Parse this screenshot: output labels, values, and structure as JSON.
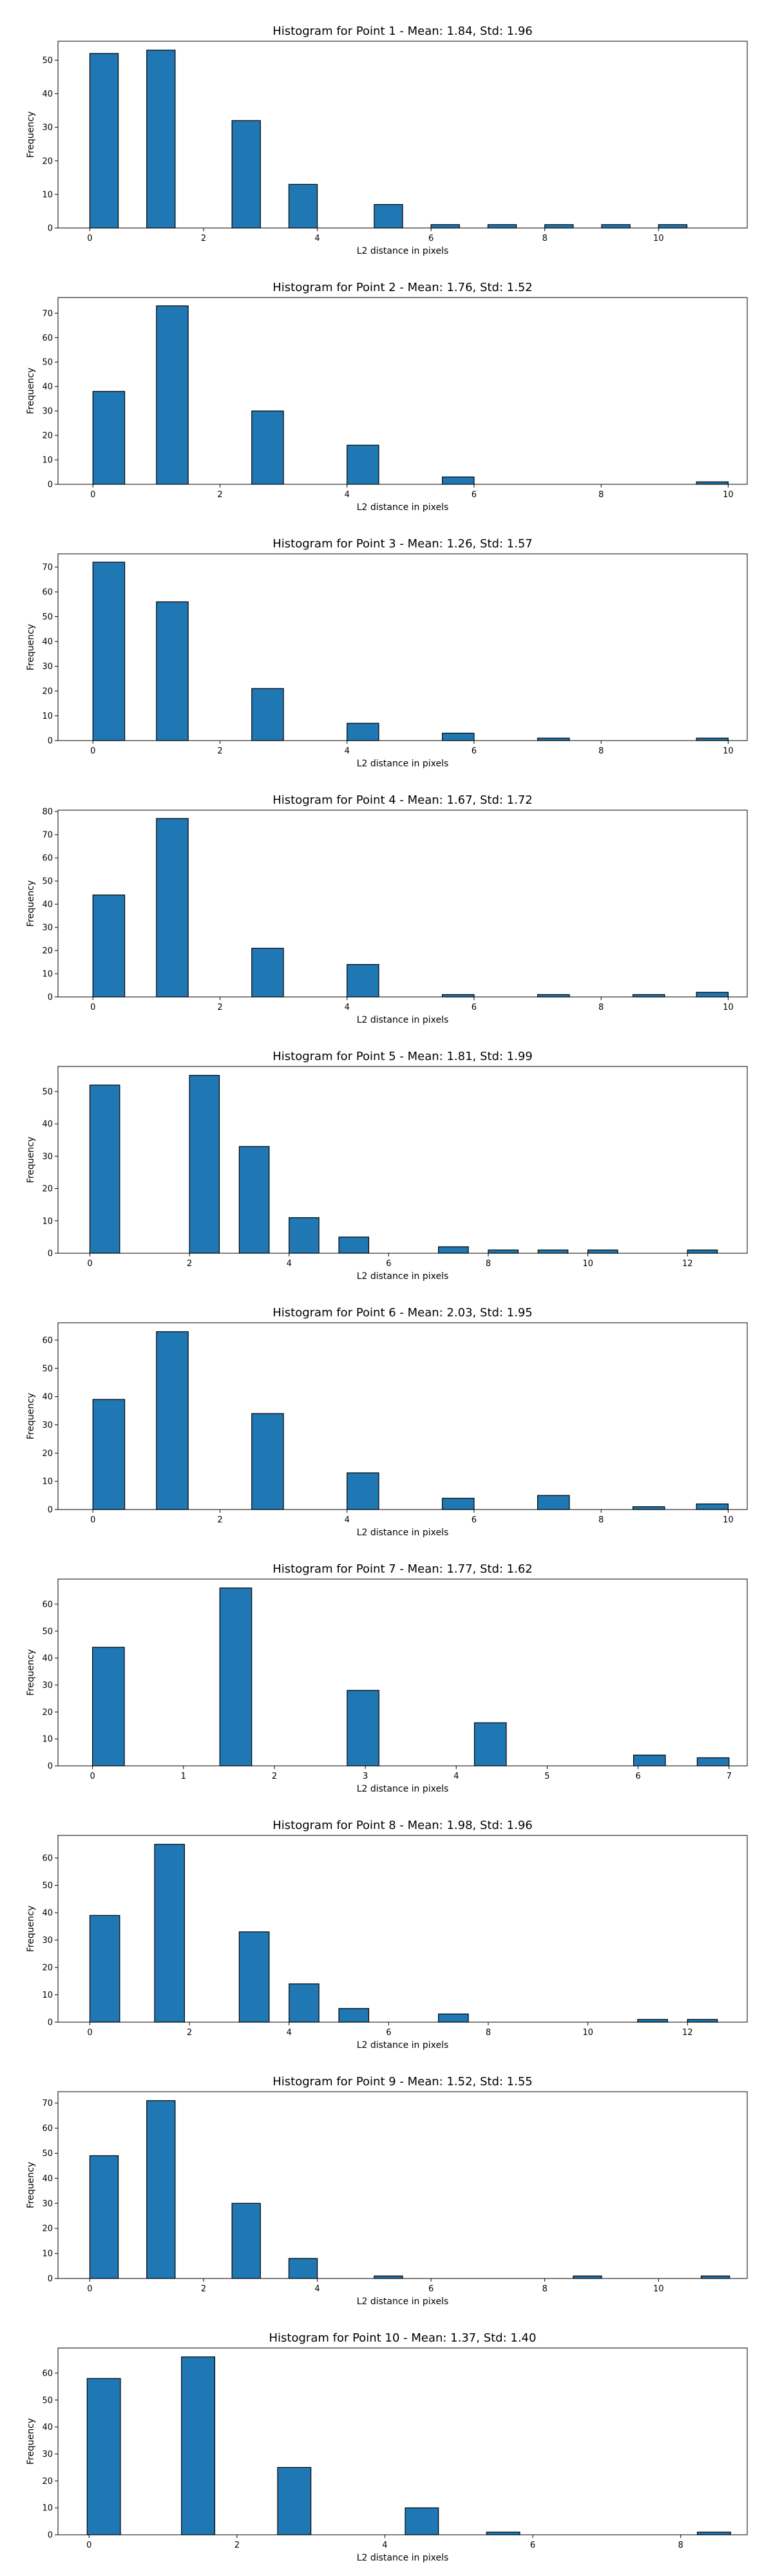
{
  "figure": {
    "background": "#ffffff",
    "bar_color": "#1f77b4",
    "bar_edge_color": "#000000"
  },
  "chart_data": [
    {
      "type": "bar",
      "title": "Histogram for Point 1 - Mean: 1.84, Std: 1.96",
      "xlabel": "L2 distance in pixels",
      "ylabel": "Frequency",
      "xlim": [
        -0.56,
        11.56
      ],
      "ylim": [
        0,
        55.65
      ],
      "xticks": [
        0,
        2,
        4,
        6,
        8,
        10
      ],
      "yticks": [
        0,
        10,
        20,
        30,
        40,
        50
      ],
      "bar_width": 0.5,
      "x": [
        0.25,
        1.25,
        2.75,
        3.75,
        5.25,
        6.25,
        7.25,
        8.25,
        9.25,
        10.25
      ],
      "values": [
        52,
        53,
        32,
        13,
        7,
        1,
        1,
        1,
        1,
        1
      ]
    },
    {
      "type": "bar",
      "title": "Histogram for Point 2 - Mean: 1.76, Std: 1.52",
      "xlabel": "L2 distance in pixels",
      "ylabel": "Frequency",
      "xlim": [
        -0.55,
        10.3
      ],
      "ylim": [
        0,
        76.4
      ],
      "xticks": [
        0,
        2,
        4,
        6,
        8,
        10
      ],
      "yticks": [
        0,
        10,
        20,
        30,
        40,
        50,
        60,
        70
      ],
      "bar_width": 0.5,
      "x": [
        0.25,
        1.25,
        2.75,
        4.25,
        5.75,
        9.75
      ],
      "values": [
        38,
        73,
        30,
        16,
        3,
        1
      ]
    },
    {
      "type": "bar",
      "title": "Histogram for Point 3 - Mean: 1.26, Std: 1.57",
      "xlabel": "L2 distance in pixels",
      "ylabel": "Frequency",
      "xlim": [
        -0.55,
        10.3
      ],
      "ylim": [
        0,
        75.35
      ],
      "xticks": [
        0,
        2,
        4,
        6,
        8,
        10
      ],
      "yticks": [
        0,
        10,
        20,
        30,
        40,
        50,
        60,
        70
      ],
      "bar_width": 0.5,
      "x": [
        0.25,
        1.25,
        2.75,
        4.25,
        5.75,
        7.25,
        9.75
      ],
      "values": [
        72,
        56,
        21,
        7,
        3,
        1,
        1
      ]
    },
    {
      "type": "bar",
      "title": "Histogram for Point 4 - Mean: 1.67, Std: 1.72",
      "xlabel": "L2 distance in pixels",
      "ylabel": "Frequency",
      "xlim": [
        -0.55,
        10.3
      ],
      "ylim": [
        0,
        80.6
      ],
      "xticks": [
        0,
        2,
        4,
        6,
        8,
        10
      ],
      "yticks": [
        0,
        10,
        20,
        30,
        40,
        50,
        60,
        70,
        80
      ],
      "bar_width": 0.5,
      "x": [
        0.25,
        1.25,
        2.75,
        4.25,
        5.75,
        7.25,
        8.75,
        9.75
      ],
      "values": [
        44,
        77,
        21,
        14,
        1,
        1,
        1,
        2
      ]
    },
    {
      "type": "bar",
      "title": "Histogram for Point 5 - Mean: 1.81, Std: 1.99",
      "xlabel": "L2 distance in pixels",
      "ylabel": "Frequency",
      "xlim": [
        -0.64,
        13.2
      ],
      "ylim": [
        0,
        57.75
      ],
      "xticks": [
        0,
        2,
        4,
        6,
        8,
        10,
        12
      ],
      "yticks": [
        0,
        10,
        20,
        30,
        40,
        50
      ],
      "bar_width": 0.6,
      "x": [
        0.3,
        2.3,
        3.3,
        4.3,
        5.3,
        7.3,
        8.3,
        9.3,
        10.3,
        12.3
      ],
      "values": [
        52,
        55,
        33,
        11,
        5,
        2,
        1,
        1,
        1,
        1
      ]
    },
    {
      "type": "bar",
      "title": "Histogram for Point 6 - Mean: 2.03, Std: 1.95",
      "xlabel": "L2 distance in pixels",
      "ylabel": "Frequency",
      "xlim": [
        -0.55,
        10.3
      ],
      "ylim": [
        0,
        66.15
      ],
      "xticks": [
        0,
        2,
        4,
        6,
        8,
        10
      ],
      "yticks": [
        0,
        10,
        20,
        30,
        40,
        50,
        60
      ],
      "bar_width": 0.5,
      "x": [
        0.25,
        1.25,
        2.75,
        4.25,
        5.75,
        7.25,
        8.75,
        9.75
      ],
      "values": [
        39,
        63,
        34,
        13,
        4,
        5,
        1,
        2
      ]
    },
    {
      "type": "bar",
      "title": "Histogram for Point 7 - Mean: 1.77, Std: 1.62",
      "xlabel": "L2 distance in pixels",
      "ylabel": "Frequency",
      "xlim": [
        -0.38,
        7.2
      ],
      "ylim": [
        0,
        69.3
      ],
      "xticks": [
        0,
        1,
        2,
        3,
        4,
        5,
        6,
        7
      ],
      "yticks": [
        0,
        10,
        20,
        30,
        40,
        50,
        60
      ],
      "bar_width": 0.35,
      "x": [
        0.175,
        1.575,
        2.975,
        4.375,
        6.125,
        6.825
      ],
      "values": [
        44,
        66,
        28,
        16,
        4,
        3
      ]
    },
    {
      "type": "bar",
      "title": "Histogram for Point 8 - Mean: 1.98, Std: 1.96",
      "xlabel": "L2 distance in pixels",
      "ylabel": "Frequency",
      "xlim": [
        -0.64,
        13.2
      ],
      "ylim": [
        0,
        68.25
      ],
      "xticks": [
        0,
        2,
        4,
        6,
        8,
        10,
        12
      ],
      "yticks": [
        0,
        10,
        20,
        30,
        40,
        50,
        60
      ],
      "bar_width": 0.6,
      "x": [
        0.3,
        1.6,
        3.3,
        4.3,
        5.3,
        7.3,
        11.3,
        12.3
      ],
      "values": [
        39,
        65,
        33,
        14,
        5,
        3,
        1,
        1
      ]
    },
    {
      "type": "bar",
      "title": "Histogram for Point 9 - Mean: 1.52, Std: 1.55",
      "xlabel": "L2 distance in pixels",
      "ylabel": "Frequency",
      "xlim": [
        -0.56,
        11.56
      ],
      "ylim": [
        0,
        74.55
      ],
      "xticks": [
        0,
        2,
        4,
        6,
        8,
        10
      ],
      "yticks": [
        0,
        10,
        20,
        30,
        40,
        50,
        60,
        70
      ],
      "bar_width": 0.5,
      "x": [
        0.25,
        1.25,
        2.75,
        3.75,
        5.25,
        8.75,
        11.0
      ],
      "values": [
        49,
        71,
        30,
        8,
        1,
        1,
        1
      ]
    },
    {
      "type": "bar",
      "title": "Histogram for Point 10 - Mean: 1.37, Std: 1.40",
      "xlabel": "L2 distance in pixels",
      "ylabel": "Frequency",
      "xlim": [
        -0.42,
        8.9
      ],
      "ylim": [
        0,
        69.3
      ],
      "xticks": [
        0,
        2,
        4,
        6,
        8
      ],
      "yticks": [
        0,
        10,
        20,
        30,
        40,
        50,
        60
      ],
      "bar_width": 0.45,
      "x": [
        0.2,
        1.475,
        2.775,
        4.5,
        5.6,
        8.45
      ],
      "values": [
        58,
        66,
        25,
        10,
        1,
        1
      ]
    }
  ]
}
